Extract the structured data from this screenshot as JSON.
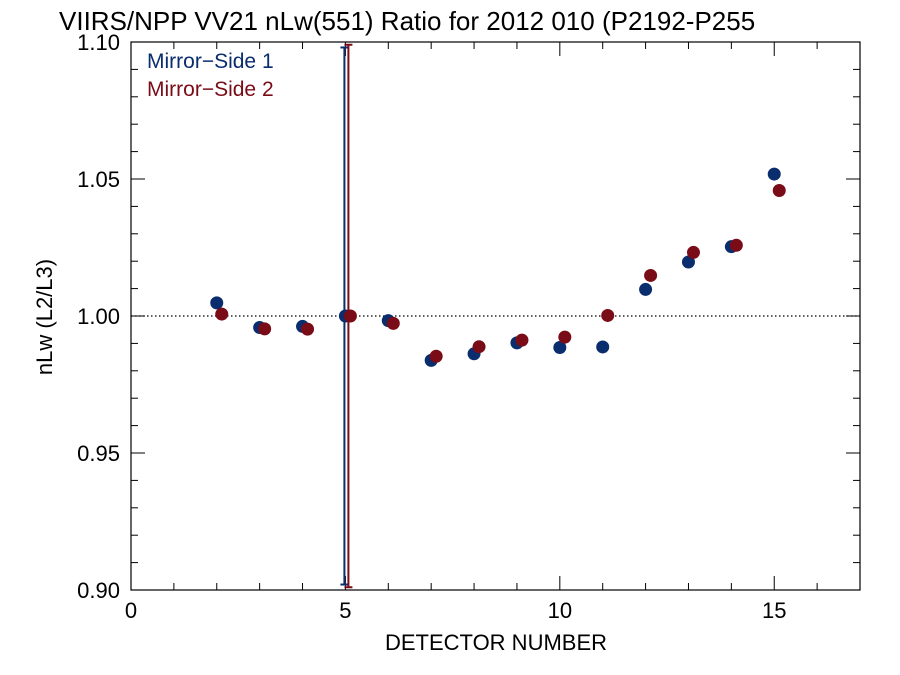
{
  "chart_data": {
    "type": "scatter",
    "title": "VIIRS/NPP VV21 nLw(551) Ratio for 2012 010 (P2192-P255",
    "xlabel": "DETECTOR NUMBER",
    "ylabel": "nLw (L2/L3)",
    "xlim": [
      0,
      17
    ],
    "ylim": [
      0.9,
      1.1
    ],
    "xticks": [
      0,
      5,
      10,
      15
    ],
    "xtick_labels": [
      "0",
      "5",
      "10",
      "15"
    ],
    "yticks": [
      0.9,
      0.95,
      1.0,
      1.05,
      1.1
    ],
    "ytick_labels": [
      "0.90",
      "0.95",
      "1.00",
      "1.05",
      "1.10"
    ],
    "reference_line": 1.0,
    "legend_position": "top-left",
    "series": [
      {
        "name": "Mirror−Side 1",
        "color": "#0a2d6e",
        "x": [
          2,
          3,
          4,
          5,
          6,
          7,
          8,
          9,
          10,
          11,
          12,
          13,
          14,
          15
        ],
        "y": [
          1.0048,
          0.9958,
          0.9962,
          1.0,
          0.9983,
          0.9838,
          0.9862,
          0.9902,
          0.9885,
          0.9887,
          1.0097,
          1.0197,
          1.0253,
          1.0518
        ],
        "error_bars": [
          {
            "x": 5,
            "low": 0.902,
            "high": 1.098
          }
        ]
      },
      {
        "name": "Mirror−Side 2",
        "color": "#7a0c18",
        "x": [
          2,
          3,
          4,
          5,
          6,
          7,
          8,
          9,
          10,
          11,
          12,
          13,
          14,
          15
        ],
        "y": [
          1.0007,
          0.9953,
          0.9952,
          1.0,
          0.9973,
          0.9853,
          0.9888,
          0.9912,
          0.9923,
          1.0002,
          1.0148,
          1.0232,
          1.0258,
          1.0458
        ],
        "error_bars": [
          {
            "x": 5,
            "low": 0.901,
            "high": 1.099
          }
        ]
      }
    ]
  }
}
